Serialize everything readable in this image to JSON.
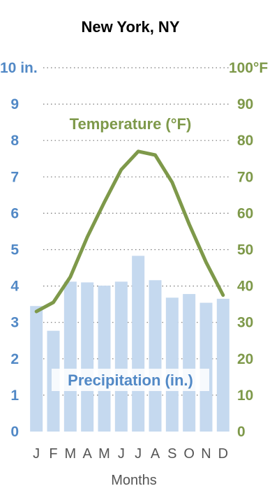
{
  "chart_data": {
    "type": "bar+line",
    "title": "New York, NY",
    "xlabel": "Months",
    "categories": [
      "J",
      "F",
      "M",
      "A",
      "M",
      "J",
      "J",
      "A",
      "S",
      "O",
      "N",
      "D"
    ],
    "series": [
      {
        "name": "Precipitation (in.)",
        "type": "bar",
        "axis": "left",
        "values": [
          3.45,
          2.77,
          4.12,
          4.1,
          4.01,
          4.12,
          4.83,
          4.16,
          3.68,
          3.78,
          3.54,
          3.65
        ]
      },
      {
        "name": "Temperature (°F)",
        "type": "line",
        "axis": "right",
        "values": [
          33,
          35.5,
          42.5,
          53.5,
          63,
          72,
          77,
          76,
          68.5,
          57,
          46.5,
          37.5
        ]
      }
    ],
    "y_left": {
      "ylim": [
        0,
        10
      ],
      "ticks": [
        "0",
        "1",
        "2",
        "3",
        "4",
        "5",
        "6",
        "7",
        "8",
        "9",
        "10 in."
      ]
    },
    "y_right": {
      "ylim": [
        0,
        100
      ],
      "ticks": [
        "0",
        "10",
        "20",
        "30",
        "40",
        "50",
        "60",
        "70",
        "80",
        "90",
        "100°F"
      ]
    },
    "grid": true,
    "grid_style": "dotted",
    "colors": {
      "bar": "#c5d9ef",
      "line": "#7e994a",
      "left_axis": "#5289c6",
      "right_axis": "#7e994a",
      "grid": "#777777"
    }
  }
}
